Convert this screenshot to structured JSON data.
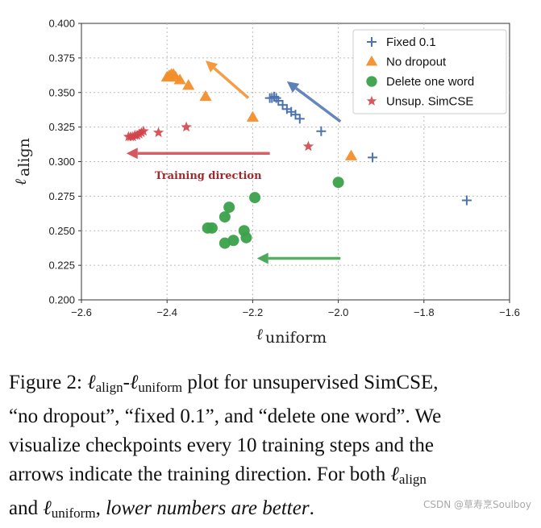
{
  "chart_data": {
    "type": "scatter",
    "title": "",
    "xlabel": "ℓ",
    "xlabel_sub": "uniform",
    "ylabel": "ℓ",
    "ylabel_sub": "align",
    "xlim": [
      -2.6,
      -1.6
    ],
    "ylim": [
      0.2,
      0.4
    ],
    "xticks": [
      -2.6,
      -2.4,
      -2.2,
      -2.0,
      -1.8,
      -1.6
    ],
    "xtick_labels": [
      "−2.6",
      "−2.4",
      "−2.2",
      "−2.0",
      "−1.8",
      "−1.6"
    ],
    "yticks": [
      0.2,
      0.225,
      0.25,
      0.275,
      0.3,
      0.325,
      0.35,
      0.375,
      0.4
    ],
    "ytick_labels": [
      "0.200",
      "0.225",
      "0.250",
      "0.275",
      "0.300",
      "0.325",
      "0.350",
      "0.375",
      "0.400"
    ],
    "grid": true,
    "legend_position": "top-right",
    "series": [
      {
        "name": "Fixed 0.1",
        "marker": "plus",
        "color": "#4c72b0",
        "points": [
          [
            -1.7,
            0.272
          ],
          [
            -1.92,
            0.303
          ],
          [
            -2.04,
            0.322
          ],
          [
            -2.09,
            0.331
          ],
          [
            -2.1,
            0.334
          ],
          [
            -2.11,
            0.336
          ],
          [
            -2.12,
            0.338
          ],
          [
            -2.13,
            0.341
          ],
          [
            -2.14,
            0.344
          ],
          [
            -2.145,
            0.346
          ],
          [
            -2.15,
            0.347
          ],
          [
            -2.155,
            0.346
          ],
          [
            -2.16,
            0.346
          ]
        ]
      },
      {
        "name": "No dropout",
        "marker": "triangle",
        "color": "#f28e2b",
        "points": [
          [
            -1.97,
            0.304
          ],
          [
            -2.2,
            0.332
          ],
          [
            -2.31,
            0.347
          ],
          [
            -2.35,
            0.355
          ],
          [
            -2.37,
            0.359
          ],
          [
            -2.38,
            0.361
          ],
          [
            -2.385,
            0.363
          ],
          [
            -2.39,
            0.363
          ],
          [
            -2.395,
            0.362
          ],
          [
            -2.4,
            0.361
          ]
        ]
      },
      {
        "name": "Delete one word",
        "marker": "circle",
        "color": "#3aa14a",
        "points": [
          [
            -2.0,
            0.285
          ],
          [
            -2.195,
            0.274
          ],
          [
            -2.255,
            0.267
          ],
          [
            -2.265,
            0.26
          ],
          [
            -2.295,
            0.252
          ],
          [
            -2.305,
            0.252
          ],
          [
            -2.22,
            0.25
          ],
          [
            -2.215,
            0.245
          ],
          [
            -2.245,
            0.243
          ],
          [
            -2.265,
            0.241
          ]
        ]
      },
      {
        "name": "Unsup. SimCSE",
        "marker": "star",
        "color": "#d1454b",
        "points": [
          [
            -2.07,
            0.311
          ],
          [
            -2.355,
            0.325
          ],
          [
            -2.42,
            0.321
          ],
          [
            -2.455,
            0.322
          ],
          [
            -2.46,
            0.321
          ],
          [
            -2.465,
            0.32
          ],
          [
            -2.47,
            0.319
          ],
          [
            -2.475,
            0.319
          ],
          [
            -2.48,
            0.318
          ],
          [
            -2.485,
            0.318
          ],
          [
            -2.49,
            0.318
          ]
        ]
      }
    ],
    "arrows": [
      {
        "color": "#4c72b0",
        "from": [
          -1.995,
          0.329
        ],
        "to": [
          -2.12,
          0.358
        ]
      },
      {
        "color": "#f28e2b",
        "from": [
          -2.21,
          0.346
        ],
        "to": [
          -2.31,
          0.373
        ]
      },
      {
        "color": "#d1454b",
        "from": [
          -2.16,
          0.306
        ],
        "to": [
          -2.495,
          0.306
        ]
      },
      {
        "color": "#3aa14a",
        "from": [
          -1.995,
          0.23
        ],
        "to": [
          -2.19,
          0.23
        ]
      }
    ],
    "annotations": [
      {
        "text": "Training direction",
        "x": -2.24,
        "y": 0.296,
        "color": "#a0292d"
      }
    ]
  },
  "caption": {
    "lines": [
      [
        {
          "t": "Figure 2: "
        },
        {
          "t": "ℓ",
          "c": "ell"
        },
        {
          "t": "align",
          "c": "sub"
        },
        {
          "t": "-"
        },
        {
          "t": "ℓ",
          "c": "ell"
        },
        {
          "t": "uniform",
          "c": "sub"
        },
        {
          "t": " plot for unsupervised SimCSE,"
        }
      ],
      [
        {
          "t": "“no dropout”, “fixed 0.1”, and “delete one word”. We"
        }
      ],
      [
        {
          "t": "visualize checkpoints every 10 training steps and the"
        }
      ],
      [
        {
          "t": "arrows indicate the training direction. For both "
        },
        {
          "t": "ℓ",
          "c": "ell"
        },
        {
          "t": "align",
          "c": "sub"
        }
      ],
      [
        {
          "t": "and "
        },
        {
          "t": "ℓ",
          "c": "ell"
        },
        {
          "t": "uniform",
          "c": "sub"
        },
        {
          "t": ", "
        },
        {
          "t": "lower numbers are better",
          "c": "em"
        },
        {
          "t": "."
        }
      ]
    ]
  },
  "watermark": "CSDN @草寿烹Soulboy"
}
